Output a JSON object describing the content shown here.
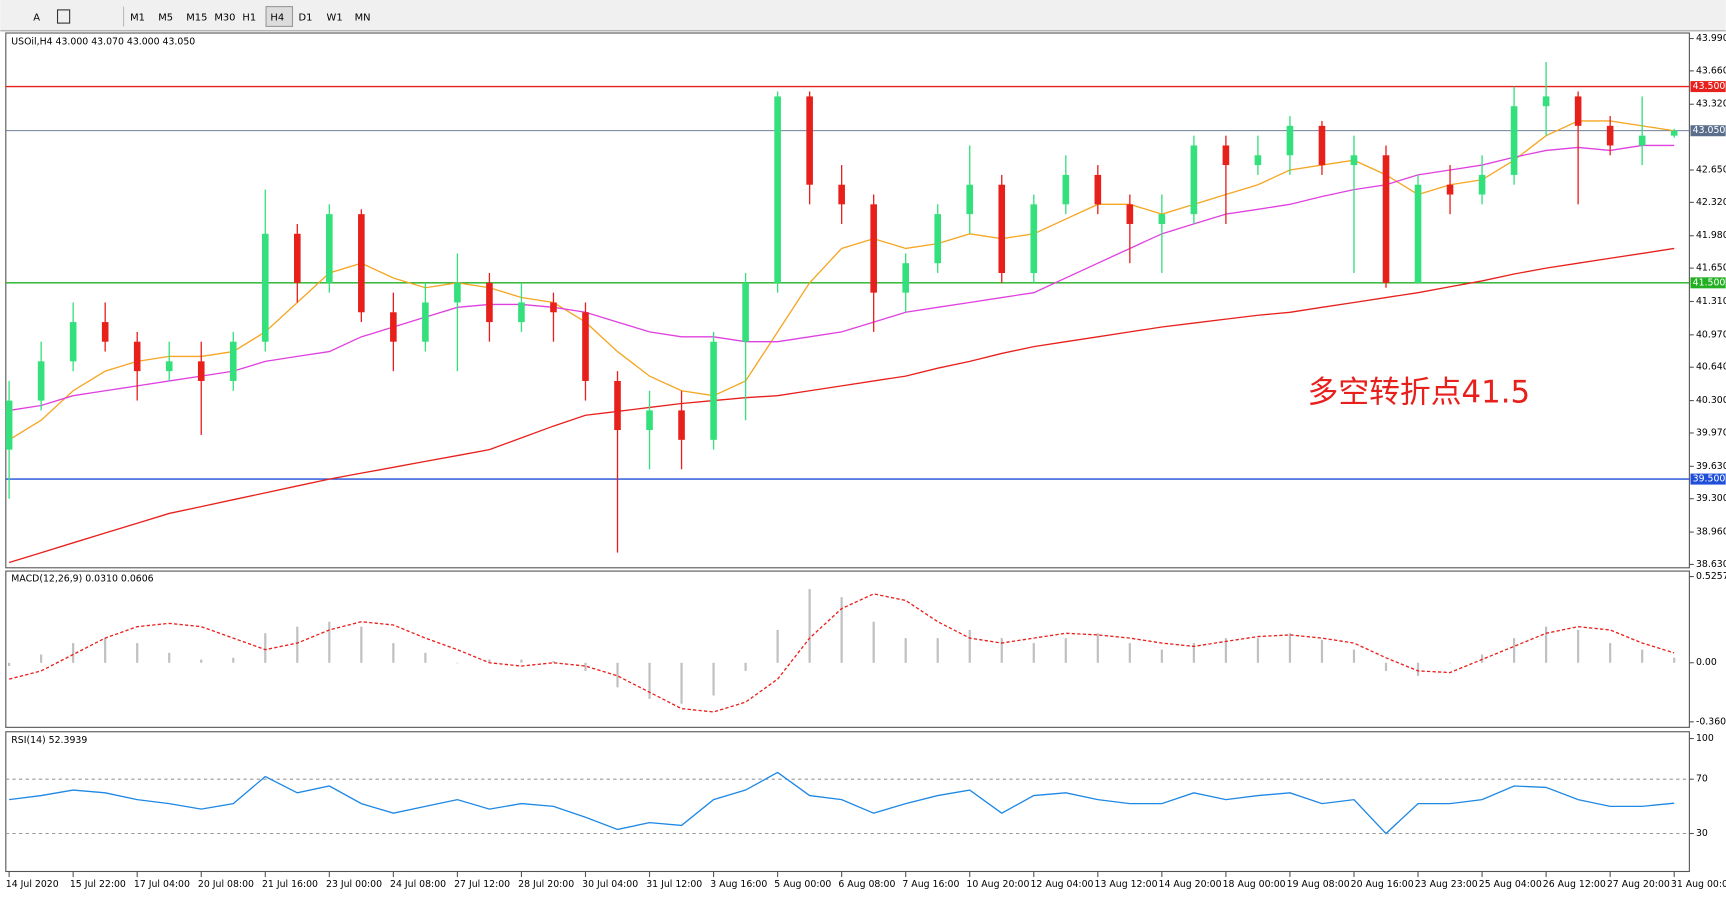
{
  "toolbar": {
    "timeframes": [
      "M1",
      "M5",
      "M15",
      "M30",
      "H1",
      "H4",
      "D1",
      "W1",
      "MN"
    ]
  },
  "chart_data": [
    {
      "type": "candlestick",
      "title": "USOil,H4  43.000 43.070 43.000 43.050",
      "annotation": "多空转折点41.5",
      "categories": [
        "14 Jul 2020",
        null,
        "15 Jul 22:00",
        null,
        "17 Jul 04:00",
        null,
        "20 Jul 08:00",
        null,
        "21 Jul 16:00",
        null,
        "23 Jul 00:00",
        null,
        "24 Jul 08:00",
        null,
        "27 Jul 12:00",
        null,
        "28 Jul 20:00",
        null,
        "30 Jul 04:00",
        null,
        "31 Jul 12:00",
        null,
        "3 Aug 16:00",
        null,
        "5 Aug 00:00",
        null,
        "6 Aug 08:00",
        null,
        "7 Aug 16:00",
        null,
        "10 Aug 20:00",
        null,
        "12 Aug 04:00",
        null,
        "13 Aug 12:00",
        null,
        "14 Aug 20:00",
        null,
        "18 Aug 00:00",
        null,
        "19 Aug 08:00",
        null,
        "20 Aug 16:00",
        null,
        "23 Aug 23:00",
        null,
        "25 Aug 04:00",
        null,
        "26 Aug 12:00",
        null,
        "27 Aug 20:00",
        null,
        "31 Aug 00:00"
      ],
      "candles": [
        [
          39.8,
          40.5,
          39.3,
          40.3
        ],
        [
          40.3,
          40.9,
          40.2,
          40.7
        ],
        [
          40.7,
          41.3,
          40.6,
          41.1
        ],
        [
          41.1,
          41.3,
          40.8,
          40.9
        ],
        [
          40.9,
          41.0,
          40.3,
          40.6
        ],
        [
          40.6,
          40.9,
          40.5,
          40.7
        ],
        [
          40.7,
          40.9,
          39.95,
          40.5
        ],
        [
          40.5,
          41.0,
          40.4,
          40.9
        ],
        [
          40.9,
          42.45,
          40.8,
          42.0
        ],
        [
          42.0,
          42.1,
          41.3,
          41.5
        ],
        [
          41.5,
          42.3,
          41.4,
          42.2
        ],
        [
          42.2,
          42.25,
          41.1,
          41.2
        ],
        [
          41.2,
          41.4,
          40.6,
          40.9
        ],
        [
          40.9,
          41.5,
          40.8,
          41.3
        ],
        [
          41.3,
          41.8,
          40.6,
          41.5
        ],
        [
          41.5,
          41.6,
          40.9,
          41.1
        ],
        [
          41.1,
          41.5,
          41.0,
          41.3
        ],
        [
          41.3,
          41.4,
          40.9,
          41.2
        ],
        [
          41.2,
          41.3,
          40.3,
          40.5
        ],
        [
          40.5,
          40.6,
          38.75,
          40.0
        ],
        [
          40.0,
          40.4,
          39.6,
          40.2
        ],
        [
          40.2,
          40.4,
          39.6,
          39.9
        ],
        [
          39.9,
          41.0,
          39.8,
          40.9
        ],
        [
          40.9,
          41.6,
          40.1,
          41.5
        ],
        [
          41.5,
          43.45,
          41.4,
          43.4
        ],
        [
          43.4,
          43.45,
          42.3,
          42.5
        ],
        [
          42.5,
          42.7,
          42.1,
          42.3
        ],
        [
          42.3,
          42.4,
          41.0,
          41.4
        ],
        [
          41.4,
          41.8,
          41.2,
          41.7
        ],
        [
          41.7,
          42.3,
          41.6,
          42.2
        ],
        [
          42.2,
          42.9,
          42.0,
          42.5
        ],
        [
          42.5,
          42.6,
          41.5,
          41.6
        ],
        [
          41.6,
          42.4,
          41.5,
          42.3
        ],
        [
          42.3,
          42.8,
          42.2,
          42.6
        ],
        [
          42.6,
          42.7,
          42.2,
          42.3
        ],
        [
          42.3,
          42.4,
          41.7,
          42.1
        ],
        [
          42.1,
          42.4,
          41.6,
          42.2
        ],
        [
          42.2,
          43.0,
          42.1,
          42.9
        ],
        [
          42.9,
          43.0,
          42.1,
          42.7
        ],
        [
          42.7,
          43.0,
          42.6,
          42.8
        ],
        [
          42.8,
          43.2,
          42.6,
          43.1
        ],
        [
          43.1,
          43.15,
          42.6,
          42.7
        ],
        [
          42.7,
          43.0,
          41.6,
          42.8
        ],
        [
          42.8,
          42.9,
          41.45,
          41.5
        ],
        [
          41.5,
          42.6,
          41.5,
          42.5
        ],
        [
          42.5,
          42.7,
          42.2,
          42.4
        ],
        [
          42.4,
          42.8,
          42.3,
          42.6
        ],
        [
          42.6,
          43.5,
          42.5,
          43.3
        ],
        [
          43.3,
          43.75,
          43.0,
          43.4
        ],
        [
          43.4,
          43.45,
          42.3,
          43.1
        ],
        [
          43.1,
          43.2,
          42.8,
          42.9
        ],
        [
          42.9,
          43.4,
          42.7,
          43.0
        ],
        [
          43.0,
          43.07,
          42.98,
          43.05
        ]
      ],
      "up_color": "#33e07c",
      "down_color": "#e8201c",
      "lines": [
        {
          "color": "#f5a623",
          "values": [
            39.9,
            40.1,
            40.4,
            40.6,
            40.7,
            40.75,
            40.75,
            40.8,
            41.0,
            41.3,
            41.6,
            41.7,
            41.55,
            41.45,
            41.5,
            41.45,
            41.35,
            41.3,
            41.1,
            40.8,
            40.55,
            40.4,
            40.35,
            40.5,
            41.0,
            41.5,
            41.85,
            41.95,
            41.85,
            41.9,
            42.0,
            41.95,
            42.0,
            42.15,
            42.3,
            42.3,
            42.2,
            42.3,
            42.4,
            42.5,
            42.65,
            42.7,
            42.75,
            42.6,
            42.4,
            42.5,
            42.55,
            42.75,
            43.0,
            43.15,
            43.15,
            43.1,
            43.05
          ]
        },
        {
          "color": "#e040e0",
          "values": [
            40.2,
            40.25,
            40.35,
            40.4,
            40.45,
            40.5,
            40.55,
            40.6,
            40.7,
            40.75,
            40.8,
            40.95,
            41.05,
            41.15,
            41.25,
            41.28,
            41.28,
            41.25,
            41.2,
            41.1,
            41.0,
            40.95,
            40.95,
            40.9,
            40.9,
            40.95,
            41.0,
            41.1,
            41.2,
            41.25,
            41.3,
            41.35,
            41.4,
            41.55,
            41.7,
            41.85,
            42.0,
            42.1,
            42.2,
            42.25,
            42.3,
            42.38,
            42.45,
            42.5,
            42.6,
            42.65,
            42.7,
            42.78,
            42.85,
            42.88,
            42.85,
            42.9,
            42.9
          ]
        },
        {
          "color": "#e8201c",
          "values": [
            38.65,
            38.75,
            38.85,
            38.95,
            39.05,
            39.15,
            39.22,
            39.29,
            39.36,
            39.43,
            39.5,
            39.56,
            39.62,
            39.68,
            39.74,
            39.8,
            39.92,
            40.04,
            40.15,
            40.19,
            40.23,
            40.27,
            40.3,
            40.33,
            40.35,
            40.4,
            40.45,
            40.5,
            40.55,
            40.63,
            40.7,
            40.78,
            40.85,
            40.9,
            40.95,
            41.0,
            41.05,
            41.09,
            41.13,
            41.17,
            41.2,
            41.25,
            41.3,
            41.35,
            41.4,
            41.46,
            41.52,
            41.59,
            41.65,
            41.7,
            41.75,
            41.8,
            41.85
          ]
        }
      ],
      "levels": [
        {
          "value": 43.5,
          "label": "43.500",
          "color": "#e8201c"
        },
        {
          "value": 43.05,
          "label": "43.050",
          "color": "#5a6e8c"
        },
        {
          "value": 41.5,
          "label": "41.500",
          "color": "#22b022"
        },
        {
          "value": 39.5,
          "label": "39.500",
          "color": "#1f4fd8"
        }
      ],
      "ylim": [
        38.596,
        44.046
      ],
      "yticks": [
        {
          "value": 43.99,
          "label": "43.990"
        },
        {
          "value": 43.66,
          "label": "43.660"
        },
        {
          "value": 43.32,
          "label": "43.320"
        },
        {
          "value": 42.65,
          "label": "42.650"
        },
        {
          "value": 42.32,
          "label": "42.320"
        },
        {
          "value": 41.98,
          "label": "41.980"
        },
        {
          "value": 41.65,
          "label": "41.650"
        },
        {
          "value": 41.31,
          "label": "41.310"
        },
        {
          "value": 40.97,
          "label": "40.970"
        },
        {
          "value": 40.64,
          "label": "40.640"
        },
        {
          "value": 40.3,
          "label": "40.300"
        },
        {
          "value": 39.97,
          "label": "39.970"
        },
        {
          "value": 39.63,
          "label": "39.630"
        },
        {
          "value": 39.3,
          "label": "39.300"
        },
        {
          "value": 38.96,
          "label": "38.960"
        },
        {
          "value": 38.63,
          "label": "38.630"
        }
      ]
    },
    {
      "type": "macd",
      "title": "MACD(12,26,9) 0.0310 0.0606",
      "histogram": [
        -0.02,
        0.05,
        0.12,
        0.15,
        0.12,
        0.06,
        0.02,
        0.03,
        0.18,
        0.22,
        0.25,
        0.22,
        0.12,
        0.06,
        0.0,
        0.02,
        0.02,
        0.01,
        -0.05,
        -0.15,
        -0.22,
        -0.25,
        -0.2,
        -0.05,
        0.2,
        0.45,
        0.4,
        0.25,
        0.15,
        0.15,
        0.2,
        0.15,
        0.12,
        0.15,
        0.18,
        0.12,
        0.08,
        0.12,
        0.15,
        0.15,
        0.18,
        0.14,
        0.08,
        -0.05,
        -0.08,
        0.0,
        0.05,
        0.15,
        0.22,
        0.2,
        0.12,
        0.08,
        0.031
      ],
      "hist_color": "#c0c0c0",
      "signal": [
        -0.1,
        -0.05,
        0.05,
        0.15,
        0.22,
        0.24,
        0.22,
        0.15,
        0.08,
        0.12,
        0.2,
        0.25,
        0.23,
        0.15,
        0.08,
        0.0,
        -0.02,
        0.0,
        -0.02,
        -0.08,
        -0.18,
        -0.28,
        -0.3,
        -0.24,
        -0.1,
        0.15,
        0.33,
        0.42,
        0.38,
        0.25,
        0.15,
        0.12,
        0.15,
        0.18,
        0.17,
        0.15,
        0.12,
        0.1,
        0.13,
        0.16,
        0.17,
        0.15,
        0.12,
        0.03,
        -0.05,
        -0.06,
        0.02,
        0.1,
        0.18,
        0.22,
        0.2,
        0.12,
        0.0606
      ],
      "signal_color": "#e8201c",
      "ylim": [
        -0.394,
        0.559
      ],
      "yticks": [
        0.5257,
        {
          "value": 0,
          "label": "0.00"
        },
        -0.3603
      ]
    },
    {
      "type": "rsi",
      "title": "RSI(14) 52.3939",
      "color": "#1e88e5",
      "values": [
        55,
        58,
        62,
        60,
        55,
        52,
        48,
        52,
        72,
        60,
        65,
        52,
        45,
        50,
        55,
        48,
        52,
        50,
        42,
        33,
        38,
        36,
        55,
        62,
        75,
        58,
        55,
        45,
        52,
        58,
        62,
        45,
        58,
        60,
        55,
        52,
        52,
        60,
        55,
        58,
        60,
        52,
        55,
        30,
        52,
        52,
        55,
        65,
        64,
        55,
        50,
        50,
        52.3939
      ],
      "ylim": [
        2,
        105
      ],
      "yticks": [
        100,
        70,
        30
      ],
      "levels": [
        70,
        30
      ]
    }
  ]
}
